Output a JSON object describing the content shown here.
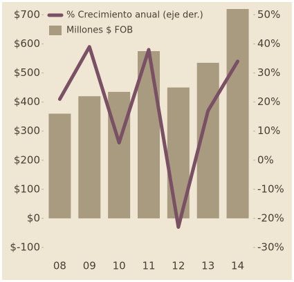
{
  "chart_data": {
    "type": "bar-line",
    "categories": [
      "08",
      "09",
      "10",
      "11",
      "12",
      "13",
      "14"
    ],
    "series": [
      {
        "name": "% Crecimiento anual (eje der.)",
        "type": "line",
        "axis": "y2",
        "color": "#7a5064",
        "values": [
          21,
          39,
          6,
          38,
          -23,
          17,
          34
        ]
      },
      {
        "name": "Millones $ FOB",
        "type": "bar",
        "color": "#a99b80",
        "values": [
          360,
          420,
          435,
          575,
          450,
          535,
          720
        ]
      }
    ],
    "ylim": [
      -100,
      720
    ],
    "yticks": [
      {
        "value": -100,
        "label": "$-100"
      },
      {
        "value": 0,
        "label": "$0"
      },
      {
        "value": 100,
        "label": "$100"
      },
      {
        "value": 200,
        "label": "$200"
      },
      {
        "value": 300,
        "label": "$300"
      },
      {
        "value": 400,
        "label": "$400"
      },
      {
        "value": 500,
        "label": "$500"
      },
      {
        "value": 600,
        "label": "$600"
      },
      {
        "value": 700,
        "label": "$700"
      }
    ],
    "y2lim": [
      -30,
      52
    ],
    "y2ticks": [
      {
        "value": -30,
        "label": "-30%"
      },
      {
        "value": -20,
        "label": "-20%"
      },
      {
        "value": -10,
        "label": "-10%"
      },
      {
        "value": 0,
        "label": "0%"
      },
      {
        "value": 10,
        "label": "10%"
      },
      {
        "value": 20,
        "label": "20%"
      },
      {
        "value": 30,
        "label": "30%"
      },
      {
        "value": 40,
        "label": "40%"
      },
      {
        "value": 50,
        "label": "50%"
      }
    ],
    "legend": "top-left"
  }
}
